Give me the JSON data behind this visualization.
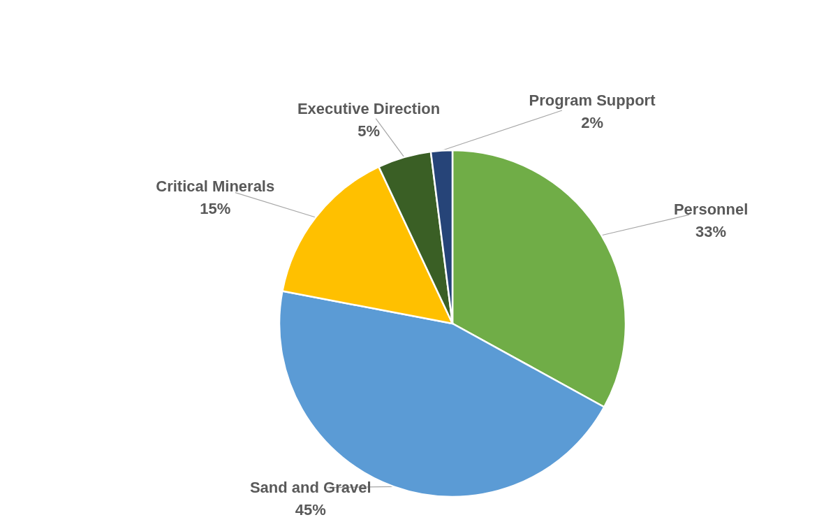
{
  "chart_data": {
    "type": "pie",
    "categories": [
      "Personnel",
      "Sand and Gravel",
      "Critical Minerals",
      "Executive Direction",
      "Program Support"
    ],
    "values": [
      33,
      45,
      15,
      5,
      2
    ],
    "colors": [
      "#70ad47",
      "#5b9bd5",
      "#ffc000",
      "#3a5f25",
      "#264478"
    ],
    "value_labels": [
      "33%",
      "45%",
      "15%",
      "5%",
      "2%"
    ]
  }
}
